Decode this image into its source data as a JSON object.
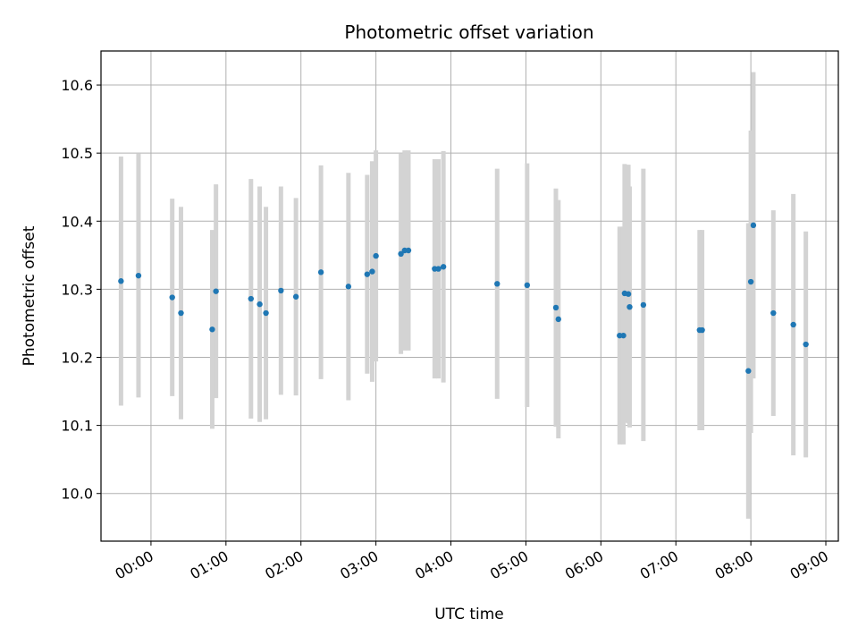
{
  "chart_data": {
    "type": "scatter",
    "title": "Photometric offset variation",
    "xlabel": "UTC time",
    "ylabel": "Photometric offset",
    "x_ticks": [
      "00:00",
      "01:00",
      "02:00",
      "03:00",
      "04:00",
      "05:00",
      "06:00",
      "07:00",
      "08:00",
      "09:00"
    ],
    "y_ticks": [
      10.0,
      10.1,
      10.2,
      10.3,
      10.4,
      10.5,
      10.6
    ],
    "xlim": [
      "23:20",
      "09:10"
    ],
    "ylim": [
      9.93,
      10.65
    ],
    "grid": true,
    "colors": {
      "point": "#1f77b4",
      "errorbar": "#d3d3d3",
      "grid": "#b0b0b0"
    },
    "series": [
      {
        "points": [
          {
            "t": "23:36",
            "y": 10.312,
            "err": 0.183
          },
          {
            "t": "23:50",
            "y": 10.32,
            "err": 0.179
          },
          {
            "t": "00:17",
            "y": 10.288,
            "err": 0.145
          },
          {
            "t": "00:24",
            "y": 10.265,
            "err": 0.156
          },
          {
            "t": "00:49",
            "y": 10.241,
            "err": 0.146
          },
          {
            "t": "00:52",
            "y": 10.297,
            "err": 0.157
          },
          {
            "t": "01:20",
            "y": 10.286,
            "err": 0.176
          },
          {
            "t": "01:27",
            "y": 10.278,
            "err": 0.173
          },
          {
            "t": "01:32",
            "y": 10.265,
            "err": 0.156
          },
          {
            "t": "01:44",
            "y": 10.298,
            "err": 0.153
          },
          {
            "t": "01:56",
            "y": 10.289,
            "err": 0.145
          },
          {
            "t": "02:16",
            "y": 10.325,
            "err": 0.157
          },
          {
            "t": "02:38",
            "y": 10.304,
            "err": 0.167
          },
          {
            "t": "02:53",
            "y": 10.322,
            "err": 0.146
          },
          {
            "t": "02:57",
            "y": 10.326,
            "err": 0.162
          },
          {
            "t": "03:00",
            "y": 10.349,
            "err": 0.155
          },
          {
            "t": "03:20",
            "y": 10.352,
            "err": 0.147
          },
          {
            "t": "03:23",
            "y": 10.357,
            "err": 0.147
          },
          {
            "t": "03:26",
            "y": 10.357,
            "err": 0.147
          },
          {
            "t": "03:47",
            "y": 10.33,
            "err": 0.161
          },
          {
            "t": "03:50",
            "y": 10.33,
            "err": 0.161
          },
          {
            "t": "03:54",
            "y": 10.333,
            "err": 0.17
          },
          {
            "t": "04:37",
            "y": 10.308,
            "err": 0.169
          },
          {
            "t": "05:01",
            "y": 10.306,
            "err": 0.179
          },
          {
            "t": "05:24",
            "y": 10.273,
            "err": 0.175
          },
          {
            "t": "05:26",
            "y": 10.256,
            "err": 0.175
          },
          {
            "t": "06:15",
            "y": 10.232,
            "err": 0.16
          },
          {
            "t": "06:18",
            "y": 10.232,
            "err": 0.16
          },
          {
            "t": "06:19",
            "y": 10.294,
            "err": 0.19
          },
          {
            "t": "06:22",
            "y": 10.293,
            "err": 0.19
          },
          {
            "t": "06:23",
            "y": 10.274,
            "err": 0.177
          },
          {
            "t": "06:34",
            "y": 10.277,
            "err": 0.2
          },
          {
            "t": "07:19",
            "y": 10.24,
            "err": 0.147
          },
          {
            "t": "07:21",
            "y": 10.24,
            "err": 0.147
          },
          {
            "t": "07:58",
            "y": 10.18,
            "err": 0.217
          },
          {
            "t": "08:00",
            "y": 10.311,
            "err": 0.222
          },
          {
            "t": "08:02",
            "y": 10.394,
            "err": 0.225
          },
          {
            "t": "08:18",
            "y": 10.265,
            "err": 0.151
          },
          {
            "t": "08:34",
            "y": 10.248,
            "err": 0.192
          },
          {
            "t": "08:44",
            "y": 10.219,
            "err": 0.166
          }
        ]
      }
    ]
  }
}
